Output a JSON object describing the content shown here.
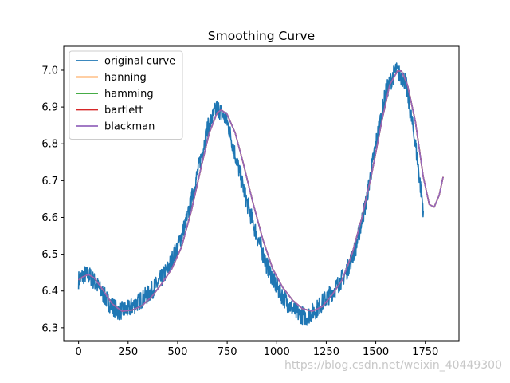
{
  "chart_data": {
    "type": "line",
    "title": "Smoothing Curve",
    "xlabel": "",
    "ylabel": "",
    "xlim": [
      -75,
      1920
    ],
    "ylim": [
      6.265,
      7.065
    ],
    "xticks": [
      0,
      250,
      500,
      750,
      1000,
      1250,
      1500,
      1750
    ],
    "xtick_labels": [
      "0",
      "250",
      "500",
      "750",
      "1000",
      "1250",
      "1500",
      "1750"
    ],
    "yticks": [
      6.3,
      6.4,
      6.5,
      6.6,
      6.7,
      6.8,
      6.9,
      7.0
    ],
    "ytick_labels": [
      "6.3",
      "6.4",
      "6.5",
      "6.6",
      "6.7",
      "6.8",
      "6.9",
      "7.0"
    ],
    "grid": false,
    "legend_position": "top-left",
    "series": [
      {
        "name": "original curve",
        "color": "#1f77b4",
        "noise_amplitude": 0.025,
        "x": [
          0,
          30,
          60,
          100,
          150,
          200,
          250,
          300,
          350,
          400,
          450,
          500,
          550,
          600,
          650,
          700,
          750,
          800,
          850,
          900,
          950,
          1000,
          1050,
          1100,
          1150,
          1200,
          1250,
          1300,
          1350,
          1400,
          1450,
          1500,
          1550,
          1600,
          1650,
          1700,
          1740
        ],
        "y": [
          6.43,
          6.445,
          6.44,
          6.41,
          6.37,
          6.345,
          6.35,
          6.37,
          6.39,
          6.42,
          6.46,
          6.52,
          6.6,
          6.72,
          6.84,
          6.9,
          6.86,
          6.75,
          6.64,
          6.55,
          6.47,
          6.41,
          6.37,
          6.34,
          6.33,
          6.35,
          6.38,
          6.41,
          6.45,
          6.52,
          6.64,
          6.8,
          6.94,
          7.0,
          6.97,
          6.8,
          6.62
        ]
      },
      {
        "name": "hanning",
        "color": "#ff7f0e",
        "x": [
          0,
          20,
          50,
          80,
          120,
          170,
          220,
          270,
          320,
          370,
          420,
          470,
          520,
          570,
          620,
          660,
          700,
          720,
          750,
          790,
          830,
          880,
          930,
          980,
          1030,
          1080,
          1130,
          1180,
          1230,
          1280,
          1330,
          1380,
          1430,
          1480,
          1530,
          1570,
          1610,
          1630,
          1660,
          1700,
          1740,
          1770,
          1795,
          1820,
          1840
        ],
        "y": [
          6.43,
          6.438,
          6.445,
          6.435,
          6.405,
          6.365,
          6.345,
          6.348,
          6.36,
          6.385,
          6.42,
          6.46,
          6.52,
          6.62,
          6.74,
          6.83,
          6.885,
          6.892,
          6.88,
          6.83,
          6.75,
          6.64,
          6.54,
          6.46,
          6.41,
          6.375,
          6.352,
          6.345,
          6.358,
          6.39,
          6.43,
          6.5,
          6.6,
          6.72,
          6.86,
          6.96,
          6.998,
          6.998,
          6.96,
          6.86,
          6.71,
          6.635,
          6.628,
          6.66,
          6.71
        ]
      },
      {
        "name": "hamming",
        "color": "#2ca02c",
        "x": [
          0,
          20,
          50,
          80,
          120,
          170,
          220,
          270,
          320,
          370,
          420,
          470,
          520,
          570,
          620,
          660,
          700,
          720,
          750,
          790,
          830,
          880,
          930,
          980,
          1030,
          1080,
          1130,
          1180,
          1230,
          1280,
          1330,
          1380,
          1430,
          1480,
          1530,
          1570,
          1610,
          1630,
          1660,
          1700,
          1740,
          1770,
          1795,
          1820,
          1840
        ],
        "y": [
          6.43,
          6.438,
          6.445,
          6.435,
          6.405,
          6.365,
          6.345,
          6.348,
          6.36,
          6.385,
          6.42,
          6.46,
          6.52,
          6.62,
          6.74,
          6.83,
          6.885,
          6.892,
          6.88,
          6.83,
          6.75,
          6.64,
          6.54,
          6.46,
          6.41,
          6.375,
          6.352,
          6.345,
          6.358,
          6.39,
          6.43,
          6.5,
          6.6,
          6.72,
          6.86,
          6.96,
          6.998,
          6.998,
          6.96,
          6.86,
          6.71,
          6.635,
          6.628,
          6.66,
          6.71
        ]
      },
      {
        "name": "bartlett",
        "color": "#d62728",
        "x": [
          0,
          20,
          50,
          80,
          120,
          170,
          220,
          270,
          320,
          370,
          420,
          470,
          520,
          570,
          620,
          660,
          700,
          720,
          750,
          790,
          830,
          880,
          930,
          980,
          1030,
          1080,
          1130,
          1180,
          1230,
          1280,
          1330,
          1380,
          1430,
          1480,
          1530,
          1570,
          1610,
          1630,
          1660,
          1700,
          1740,
          1770,
          1795,
          1820,
          1840
        ],
        "y": [
          6.43,
          6.438,
          6.445,
          6.435,
          6.405,
          6.365,
          6.345,
          6.348,
          6.36,
          6.385,
          6.42,
          6.46,
          6.52,
          6.62,
          6.74,
          6.83,
          6.885,
          6.892,
          6.88,
          6.83,
          6.75,
          6.64,
          6.54,
          6.46,
          6.41,
          6.375,
          6.352,
          6.345,
          6.358,
          6.39,
          6.43,
          6.5,
          6.6,
          6.72,
          6.86,
          6.96,
          6.998,
          6.998,
          6.96,
          6.86,
          6.71,
          6.635,
          6.628,
          6.66,
          6.71
        ]
      },
      {
        "name": "blackman",
        "color": "#9467bd",
        "x": [
          0,
          20,
          50,
          80,
          120,
          170,
          220,
          270,
          320,
          370,
          420,
          470,
          520,
          570,
          620,
          660,
          700,
          720,
          750,
          790,
          830,
          880,
          930,
          980,
          1030,
          1080,
          1130,
          1180,
          1230,
          1280,
          1330,
          1380,
          1430,
          1480,
          1530,
          1570,
          1610,
          1630,
          1660,
          1700,
          1740,
          1770,
          1795,
          1820,
          1840
        ],
        "y": [
          6.43,
          6.438,
          6.445,
          6.435,
          6.405,
          6.365,
          6.345,
          6.348,
          6.36,
          6.385,
          6.42,
          6.46,
          6.52,
          6.62,
          6.74,
          6.83,
          6.885,
          6.892,
          6.88,
          6.83,
          6.75,
          6.64,
          6.54,
          6.46,
          6.41,
          6.375,
          6.352,
          6.345,
          6.358,
          6.39,
          6.43,
          6.5,
          6.6,
          6.72,
          6.86,
          6.96,
          6.998,
          6.998,
          6.96,
          6.86,
          6.71,
          6.635,
          6.628,
          6.66,
          6.71
        ]
      }
    ]
  },
  "watermark": "https://blog.csdn.net/weixin_40449300"
}
